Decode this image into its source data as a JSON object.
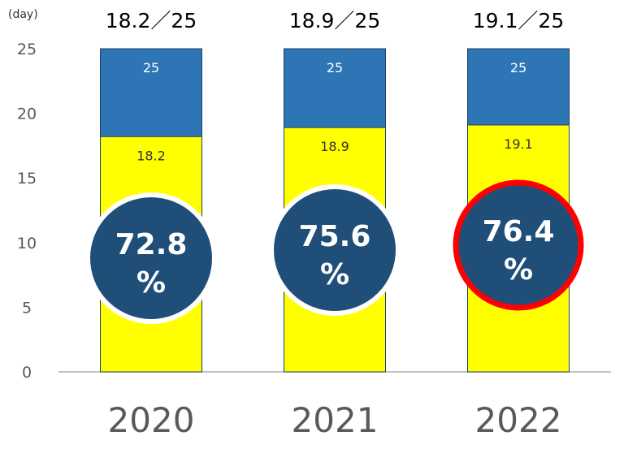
{
  "chart_data": {
    "type": "bar",
    "stacked": "overlay",
    "ylabel": "(day)",
    "ylim": [
      0,
      25
    ],
    "yticks": [
      "0",
      "5",
      "10",
      "15",
      "20",
      "25"
    ],
    "categories": [
      "2020",
      "2021",
      "2022"
    ],
    "series": [
      {
        "values": [
          25,
          25,
          25
        ],
        "labels": [
          "25",
          "25",
          "25"
        ],
        "color": "#2E75B6"
      },
      {
        "values": [
          18.2,
          18.9,
          19.1
        ],
        "labels": [
          "18.2",
          "18.9",
          "19.1"
        ],
        "color": "#FFFF00"
      }
    ],
    "top_labels": [
      "18.2／25",
      "18.9／25",
      "19.1／25"
    ],
    "badges": [
      {
        "value": "72.8",
        "unit": "%",
        "highlight": false
      },
      {
        "value": "75.6",
        "unit": "%",
        "highlight": false
      },
      {
        "value": "76.4",
        "unit": "%",
        "highlight": true
      }
    ],
    "badge_color": "#1F4E79",
    "highlight_color": "#FF0000",
    "grid": false
  }
}
